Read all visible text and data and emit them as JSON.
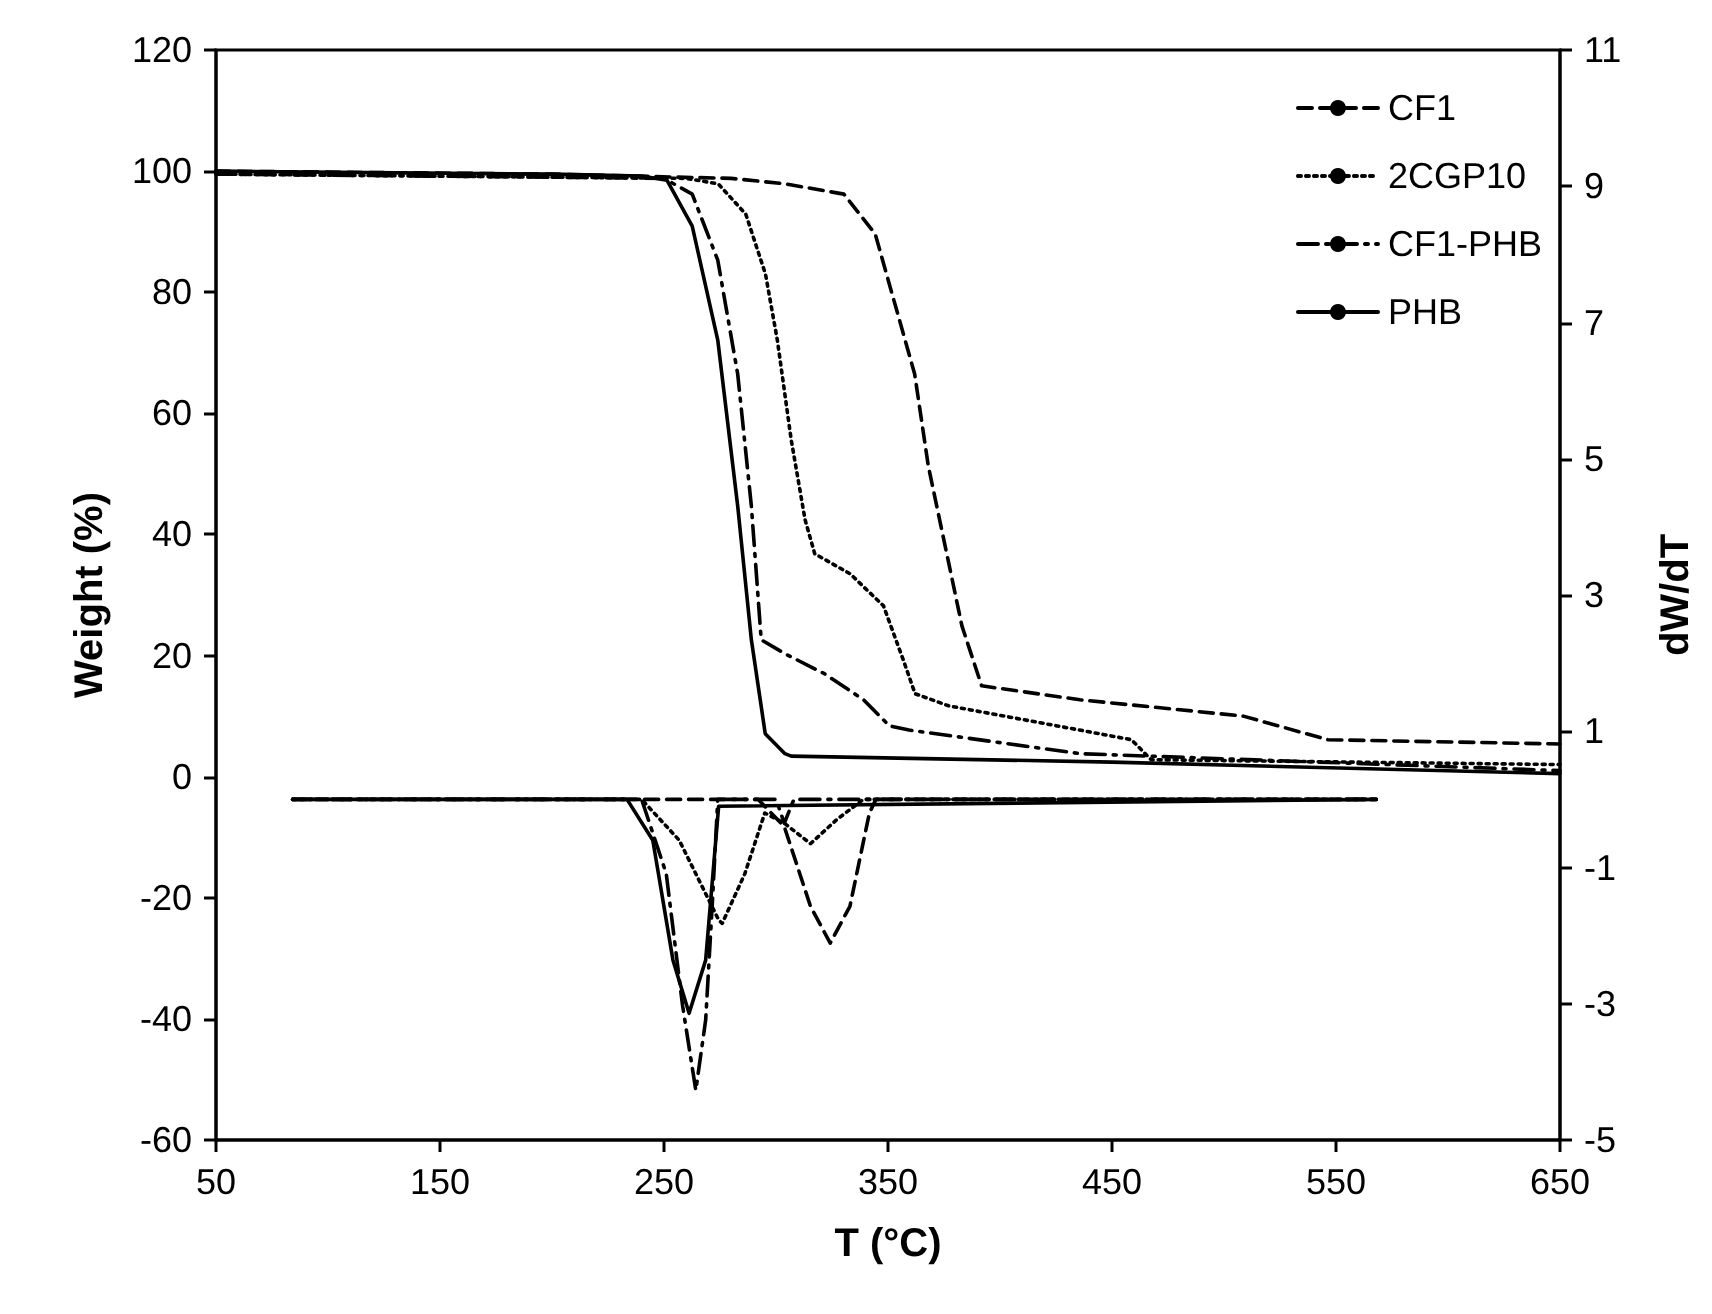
{
  "chart_data": {
    "type": "line",
    "xlabel": "T (°C)",
    "ylabel": "Weight (%)",
    "y2label": "dW/dT",
    "xlim": [
      50,
      650
    ],
    "xticks": [
      50,
      150,
      250,
      350,
      450,
      550,
      650
    ],
    "ylim": [
      -60,
      120
    ],
    "yticks": [
      -60,
      -40,
      -20,
      0,
      20,
      40,
      60,
      80,
      100,
      120
    ],
    "y2lim": [
      -5,
      11
    ],
    "y2ticks": [
      -5,
      -3,
      -1,
      1,
      3,
      5,
      7,
      9,
      11
    ],
    "grid": false,
    "legend": "top right",
    "series": [
      {
        "name": "CF1",
        "color": "#000000",
        "line_style": "dashed",
        "x": [
          50,
          200,
          280,
          304,
          330.3,
          344.3,
          361.9,
          368,
          383,
          391.8,
          435.7,
          508.6,
          546.4,
          650
        ],
        "values": [
          100,
          99.5,
          98.8,
          97.9,
          96.2,
          89.6,
          66.5,
          51.3,
          24.9,
          15,
          12.7,
          10,
          6.1,
          5.4
        ]
      },
      {
        "name": "2CGP10",
        "color": "#000000",
        "line_style": "dotted",
        "x": [
          50,
          200,
          260,
          274.2,
          286.5,
          295.3,
          300.6,
          306.8,
          313,
          317.3,
          333.1,
          348,
          356.8,
          362.1,
          377,
          420.9,
          458.7,
          467.5,
          650
        ],
        "values": [
          99.5,
          99,
          98.8,
          97.9,
          92.9,
          83,
          72.1,
          55.6,
          42.4,
          36.8,
          33.5,
          28.2,
          19.3,
          13.7,
          11.7,
          8.7,
          6.1,
          2.8,
          2
        ]
      },
      {
        "name": "CF1-PHB",
        "color": "#000000",
        "line_style": "dashdot",
        "x": [
          50,
          200,
          250,
          262.6,
          274,
          282.9,
          289,
          293.4,
          304,
          321.6,
          339.1,
          350.6,
          359.4,
          435.7,
          650
        ],
        "values": [
          99.5,
          99,
          98.8,
          96.2,
          85.3,
          66.5,
          44.7,
          22.6,
          20.3,
          17,
          12.7,
          8.4,
          7.7,
          3.8,
          1
        ]
      },
      {
        "name": "PHB",
        "color": "#000000",
        "line_style": "solid",
        "x": [
          50,
          200,
          240,
          251.3,
          262.6,
          274,
          282.9,
          289,
          295.2,
          304,
          306.8,
          450,
          650
        ],
        "values": [
          100,
          99.5,
          99.2,
          98.5,
          90.9,
          72.1,
          44.7,
          22.6,
          7.1,
          3.8,
          3.4,
          2.4,
          0.5
        ]
      },
      {
        "color": "#000000",
        "line_style": "dashed",
        "axis": "y2",
        "x": [
          84.2,
          292,
          303.7,
          315.4,
          324.2,
          333,
          341.7,
          344.6,
          568
        ],
        "values": [
          0,
          0,
          -0.4,
          -1.57,
          -2.11,
          -1.57,
          -0.2,
          0,
          0
        ]
      },
      {
        "color": "#000000",
        "line_style": "dotted",
        "axis": "y2",
        "x": [
          84.2,
          240,
          256.8,
          274.4,
          276,
          286.1,
          295,
          303.7,
          315.4,
          327,
          339,
          568
        ],
        "values": [
          0,
          0,
          -0.6,
          -1.77,
          -1.82,
          -1.09,
          -0.2,
          -0.35,
          -0.65,
          -0.3,
          0,
          0
        ]
      },
      {
        "color": "#000000",
        "line_style": "dashdot",
        "axis": "y2",
        "x": [
          84.2,
          240,
          251,
          258.3,
          264.2,
          268.6,
          271.5,
          274,
          300,
          303.7,
          308,
          568
        ],
        "values": [
          0,
          0,
          -1.09,
          -3.03,
          -4.27,
          -3.24,
          -1.57,
          0,
          0,
          -0.35,
          0,
          0
        ]
      },
      {
        "color": "#000000",
        "line_style": "solid",
        "axis": "y2",
        "x": [
          84.2,
          233.5,
          245,
          254,
          261.2,
          268.6,
          274.4,
          568
        ],
        "values": [
          0,
          0,
          -0.6,
          -2.36,
          -3.14,
          -2.36,
          -0.1,
          0
        ]
      }
    ]
  }
}
